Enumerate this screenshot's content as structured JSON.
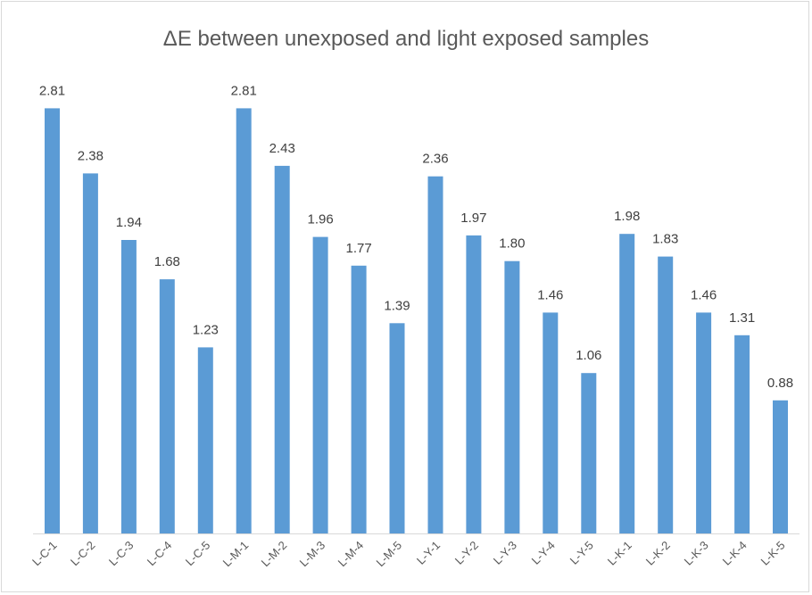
{
  "chart_data": {
    "type": "bar",
    "title": "ΔE between unexposed and light exposed samples",
    "categories": [
      "L-C-1",
      "L-C-2",
      "L-C-3",
      "L-C-4",
      "L-C-5",
      "L-M-1",
      "L-M-2",
      "L-M-3",
      "L-M-4",
      "L-M-5",
      "L-Y-1",
      "L-Y-2",
      "L-Y-3",
      "L-Y-4",
      "L-Y-5",
      "L-K-1",
      "L-K-2",
      "L-K-3",
      "L-K-4",
      "L-K-5"
    ],
    "values": [
      2.81,
      2.38,
      1.94,
      1.68,
      1.23,
      2.81,
      2.43,
      1.96,
      1.77,
      1.39,
      2.36,
      1.97,
      1.8,
      1.46,
      1.06,
      1.98,
      1.83,
      1.46,
      1.31,
      0.88
    ],
    "value_labels": [
      "2.81",
      "2.38",
      "1.94",
      "1.68",
      "1.23",
      "2.81",
      "2.43",
      "1.96",
      "1.77",
      "1.39",
      "2.36",
      "1.97",
      "1.80",
      "1.46",
      "1.06",
      "1.98",
      "1.83",
      "1.46",
      "1.31",
      "0.88"
    ],
    "ylim": [
      0,
      3
    ],
    "bar_color": "#5b9bd5",
    "axis_color": "#d9d9d9",
    "grid": false,
    "legend": "none"
  }
}
